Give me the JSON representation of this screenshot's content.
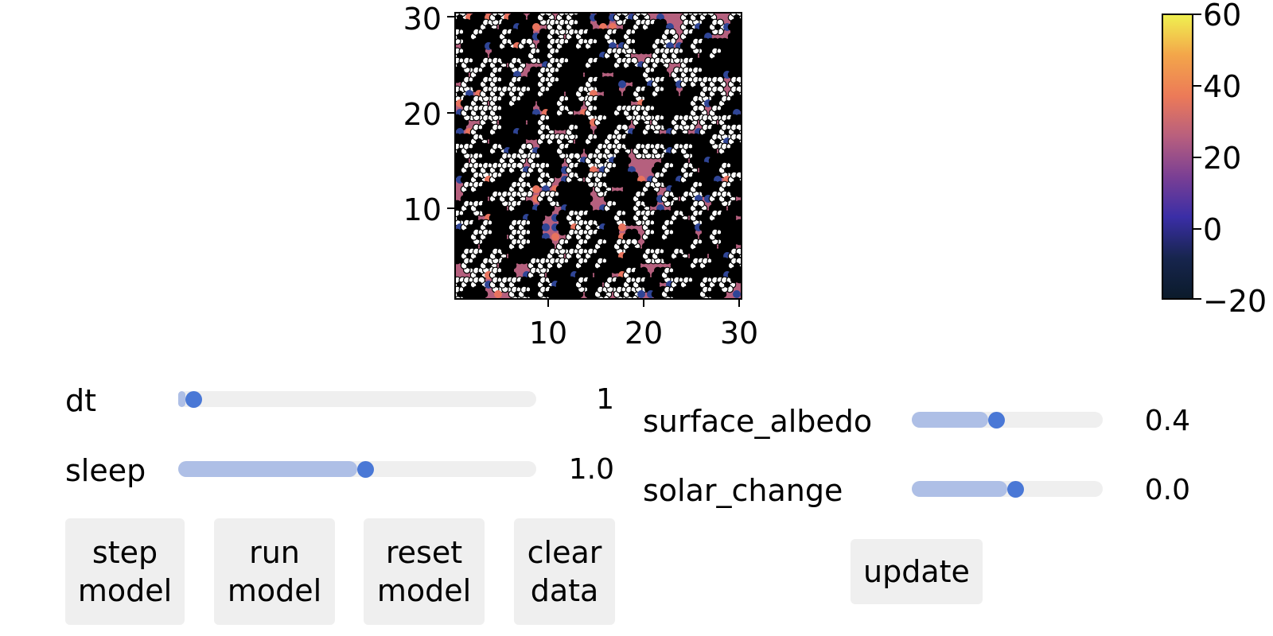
{
  "plot": {
    "x_ticks": [
      "10",
      "20",
      "30"
    ],
    "y_ticks": [
      "10",
      "20",
      "30"
    ],
    "background_color": "#b5607e"
  },
  "colorbar": {
    "ticks": [
      "60",
      "40",
      "20",
      "0",
      "−20"
    ],
    "colormap": [
      "#f0f050",
      "#f3a54a",
      "#ec7a58",
      "#b85f7e",
      "#7a3f94",
      "#3a2ea6",
      "#17254e",
      "#0b1b2b"
    ]
  },
  "controls": {
    "dt": {
      "label": "dt",
      "value": "1",
      "fraction": 0.02
    },
    "sleep": {
      "label": "sleep",
      "value": "1.0",
      "fraction": 0.5
    },
    "surface_albedo": {
      "label": "surface_albedo",
      "value": "0.4",
      "fraction": 0.4
    },
    "solar_change": {
      "label": "solar_change",
      "value": "0.0",
      "fraction": 0.5
    }
  },
  "buttons": {
    "step": "step\nmodel",
    "run": "run\nmodel",
    "reset": "reset\nmodel",
    "clear": "clear\ndata",
    "update": "update"
  },
  "accent_color": "#4a78d6",
  "track_fill_color": "#aebfe6"
}
